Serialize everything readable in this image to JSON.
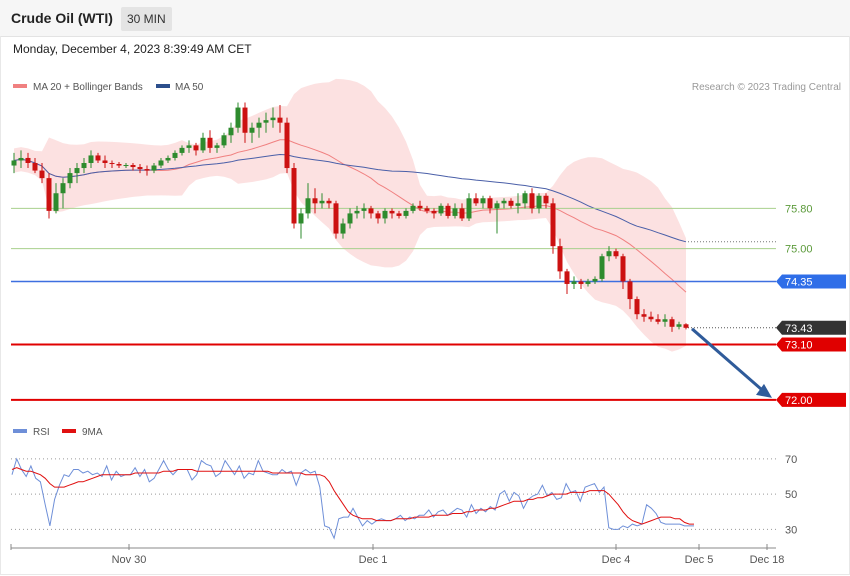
{
  "header": {
    "instrument": "Crude Oil (WTI)",
    "timeframe": "30 MIN"
  },
  "timestamp": "Monday, December 4, 2023 8:39:49 AM CET",
  "legend": {
    "ma20_bb": "MA 20 + Bollinger Bands",
    "ma50": "MA 50",
    "rsi": "RSI",
    "rsi_ma": "9MA"
  },
  "credit": "Research © 2023 Trading Central",
  "colors": {
    "up": "#2e8b2e",
    "down": "#cc1111",
    "bands": "#fcdcdc",
    "ma20": "#f08080",
    "ma50": "#4a5fa8",
    "rsi": "#6e8fd8",
    "rsi_ma": "#e01010",
    "resistance": "#a8d08d",
    "pivot": "#3d6fe0",
    "support": "#e00000",
    "current": "#333333",
    "arrow": "#2f5b9a"
  },
  "chart_data": {
    "type": "candlestick",
    "x_tick_labels": [
      "Nov 30",
      "Dec 1",
      "Dec 4",
      "Dec 5",
      "Dec 18"
    ],
    "y_range": [
      71.7,
      77.95
    ],
    "levels": [
      {
        "label": "75.80",
        "value": 75.8,
        "kind": "resistance"
      },
      {
        "label": "75.00",
        "value": 75.0,
        "kind": "resistance"
      },
      {
        "label": "74.35",
        "value": 74.35,
        "kind": "pivot"
      },
      {
        "label": "73.43",
        "value": 73.43,
        "kind": "current"
      },
      {
        "label": "73.10",
        "value": 73.1,
        "kind": "support"
      },
      {
        "label": "72.00",
        "value": 72.0,
        "kind": "support"
      }
    ],
    "forecast_arrow": {
      "from": 73.43,
      "to": 72.0,
      "direction": "down"
    },
    "candles": [
      [
        76.65,
        76.9,
        76.5,
        76.75
      ],
      [
        76.75,
        76.95,
        76.6,
        76.8
      ],
      [
        76.8,
        76.9,
        76.6,
        76.7
      ],
      [
        76.7,
        76.8,
        76.5,
        76.55
      ],
      [
        76.55,
        76.7,
        76.3,
        76.4
      ],
      [
        76.4,
        76.5,
        75.6,
        75.75
      ],
      [
        75.75,
        76.3,
        75.7,
        76.1
      ],
      [
        76.1,
        76.4,
        75.8,
        76.3
      ],
      [
        76.3,
        76.6,
        76.2,
        76.5
      ],
      [
        76.5,
        76.7,
        76.3,
        76.6
      ],
      [
        76.6,
        76.8,
        76.5,
        76.7
      ],
      [
        76.7,
        76.95,
        76.6,
        76.85
      ],
      [
        76.85,
        76.9,
        76.7,
        76.75
      ],
      [
        76.75,
        76.85,
        76.6,
        76.7
      ],
      [
        76.7,
        76.75,
        76.6,
        76.68
      ],
      [
        76.68,
        76.72,
        76.6,
        76.65
      ],
      [
        76.65,
        76.7,
        76.6,
        76.66
      ],
      [
        76.66,
        76.7,
        76.55,
        76.62
      ],
      [
        76.62,
        76.68,
        76.5,
        76.58
      ],
      [
        76.58,
        76.65,
        76.45,
        76.55
      ],
      [
        76.55,
        76.7,
        76.5,
        76.65
      ],
      [
        76.65,
        76.8,
        76.6,
        76.75
      ],
      [
        76.75,
        76.85,
        76.7,
        76.8
      ],
      [
        76.8,
        76.95,
        76.75,
        76.9
      ],
      [
        76.9,
        77.05,
        76.85,
        77.0
      ],
      [
        77.0,
        77.15,
        76.9,
        77.05
      ],
      [
        77.05,
        77.1,
        76.85,
        76.95
      ],
      [
        76.95,
        77.3,
        76.9,
        77.2
      ],
      [
        77.2,
        77.35,
        76.9,
        77.0
      ],
      [
        77.0,
        77.1,
        76.9,
        77.05
      ],
      [
        77.05,
        77.3,
        77.0,
        77.25
      ],
      [
        77.25,
        77.5,
        77.1,
        77.4
      ],
      [
        77.4,
        77.9,
        77.3,
        77.8
      ],
      [
        77.8,
        77.9,
        77.1,
        77.3
      ],
      [
        77.3,
        77.5,
        77.1,
        77.4
      ],
      [
        77.4,
        77.6,
        77.2,
        77.5
      ],
      [
        77.5,
        77.7,
        77.3,
        77.55
      ],
      [
        77.55,
        77.8,
        77.4,
        77.6
      ],
      [
        77.6,
        77.85,
        77.3,
        77.5
      ],
      [
        77.5,
        77.6,
        76.5,
        76.6
      ],
      [
        76.6,
        76.7,
        75.4,
        75.5
      ],
      [
        75.5,
        75.8,
        75.2,
        75.7
      ],
      [
        75.7,
        76.3,
        75.6,
        76.0
      ],
      [
        76.0,
        76.2,
        75.7,
        75.9
      ],
      [
        75.9,
        76.1,
        75.8,
        75.95
      ],
      [
        75.95,
        76.0,
        75.8,
        75.9
      ],
      [
        75.9,
        75.95,
        75.2,
        75.3
      ],
      [
        75.3,
        75.6,
        75.2,
        75.5
      ],
      [
        75.5,
        75.8,
        75.4,
        75.7
      ],
      [
        75.7,
        75.85,
        75.6,
        75.75
      ],
      [
        75.75,
        75.9,
        75.6,
        75.8
      ],
      [
        75.8,
        75.85,
        75.6,
        75.7
      ],
      [
        75.7,
        75.75,
        75.5,
        75.6
      ],
      [
        75.6,
        75.8,
        75.5,
        75.75
      ],
      [
        75.75,
        75.8,
        75.6,
        75.7
      ],
      [
        75.7,
        75.75,
        75.6,
        75.65
      ],
      [
        75.65,
        75.8,
        75.6,
        75.75
      ],
      [
        75.75,
        75.9,
        75.7,
        75.85
      ],
      [
        75.85,
        75.95,
        75.75,
        75.8
      ],
      [
        75.8,
        75.85,
        75.7,
        75.75
      ],
      [
        75.75,
        75.8,
        75.6,
        75.7
      ],
      [
        75.7,
        75.9,
        75.65,
        75.85
      ],
      [
        75.85,
        75.9,
        75.6,
        75.65
      ],
      [
        75.65,
        75.9,
        75.6,
        75.8
      ],
      [
        75.8,
        75.9,
        75.55,
        75.6
      ],
      [
        75.6,
        76.1,
        75.55,
        76.0
      ],
      [
        76.0,
        76.1,
        75.85,
        75.9
      ],
      [
        75.9,
        76.05,
        75.8,
        76.0
      ],
      [
        76.0,
        76.05,
        75.7,
        75.8
      ],
      [
        75.8,
        75.95,
        75.3,
        75.9
      ],
      [
        75.9,
        76.0,
        75.8,
        75.95
      ],
      [
        75.95,
        76.0,
        75.8,
        75.85
      ],
      [
        75.85,
        76.1,
        75.7,
        75.9
      ],
      [
        75.9,
        76.15,
        75.8,
        76.1
      ],
      [
        76.1,
        76.2,
        75.7,
        75.8
      ],
      [
        75.8,
        76.1,
        75.7,
        76.05
      ],
      [
        76.05,
        76.1,
        75.8,
        75.9
      ],
      [
        75.9,
        76.0,
        74.9,
        75.05
      ],
      [
        75.05,
        75.2,
        74.4,
        74.55
      ],
      [
        74.55,
        74.6,
        74.1,
        74.3
      ],
      [
        74.3,
        74.45,
        74.2,
        74.35
      ],
      [
        74.35,
        74.4,
        74.2,
        74.3
      ],
      [
        74.3,
        74.4,
        74.25,
        74.35
      ],
      [
        74.35,
        74.45,
        74.3,
        74.4
      ],
      [
        74.4,
        74.9,
        74.35,
        74.85
      ],
      [
        74.85,
        75.05,
        74.75,
        74.95
      ],
      [
        74.95,
        75.0,
        74.8,
        74.85
      ],
      [
        74.85,
        74.9,
        74.2,
        74.35
      ],
      [
        74.35,
        74.4,
        73.8,
        74.0
      ],
      [
        74.0,
        74.05,
        73.6,
        73.7
      ],
      [
        73.7,
        73.8,
        73.55,
        73.65
      ],
      [
        73.65,
        73.75,
        73.55,
        73.6
      ],
      [
        73.6,
        73.7,
        73.5,
        73.55
      ],
      [
        73.55,
        73.7,
        73.45,
        73.6
      ],
      [
        73.6,
        73.65,
        73.35,
        73.45
      ],
      [
        73.45,
        73.55,
        73.4,
        73.5
      ],
      [
        73.5,
        73.52,
        73.4,
        73.43
      ]
    ],
    "rsi": {
      "label": "RSI",
      "ma_label": "9MA",
      "ticks": [
        70,
        50,
        30
      ],
      "ylim": [
        24,
        79
      ],
      "rsi_values": [
        61,
        70,
        64,
        60,
        66,
        59,
        57,
        44,
        32,
        47,
        55,
        61,
        60,
        64,
        64,
        62,
        63,
        61,
        62,
        60,
        66,
        58,
        63,
        60,
        61,
        61,
        65,
        60,
        64,
        57,
        59,
        64,
        69,
        64,
        61,
        64,
        64,
        64,
        58,
        61,
        69,
        67,
        66,
        60,
        62,
        69,
        65,
        61,
        66,
        59,
        62,
        61,
        69,
        63,
        62,
        61,
        61,
        64,
        62,
        63,
        55,
        62,
        64,
        62,
        63,
        54,
        32,
        31,
        25,
        36,
        37,
        37,
        42,
        37,
        32,
        35,
        33,
        35,
        36,
        35,
        35,
        36,
        38,
        35,
        37,
        36,
        38,
        38,
        41,
        37,
        40,
        41,
        38,
        40,
        42,
        41,
        37,
        44,
        39,
        42,
        40,
        43,
        41,
        50,
        52,
        46,
        51,
        49,
        42,
        47,
        49,
        50,
        55,
        49,
        51,
        47,
        48,
        56,
        51,
        52,
        46,
        54,
        55,
        56,
        51,
        54,
        31,
        30,
        30,
        32,
        31,
        33,
        32,
        33,
        44,
        42,
        39,
        34,
        33,
        33,
        33,
        33,
        32,
        32,
        32
      ],
      "ma_values": [
        64,
        65,
        64,
        63,
        63,
        62,
        61,
        59,
        56,
        54,
        54,
        54,
        55,
        56,
        57,
        57,
        58,
        59,
        60,
        61,
        61,
        61,
        61,
        61,
        61,
        61,
        62,
        62,
        62,
        62,
        62,
        62,
        63,
        63,
        63,
        64,
        64,
        64,
        64,
        63,
        63,
        63,
        63,
        63,
        63,
        63,
        63,
        63,
        63,
        63,
        63,
        63,
        63,
        63,
        63,
        62,
        62,
        62,
        62,
        62,
        62,
        62,
        61,
        61,
        61,
        61,
        60,
        57,
        52,
        48,
        44,
        40,
        38,
        37,
        36,
        36,
        36,
        35,
        35,
        35,
        35,
        36,
        36,
        36,
        36,
        37,
        37,
        37,
        37,
        38,
        38,
        38,
        38,
        39,
        39,
        39,
        40,
        40,
        41,
        41,
        41,
        42,
        42,
        43,
        44,
        45,
        46,
        46,
        46,
        47,
        47,
        48,
        48,
        49,
        50,
        50,
        50,
        50,
        51,
        51,
        51,
        51,
        52,
        52,
        52,
        52,
        50,
        47,
        44,
        40,
        37,
        35,
        34,
        33,
        34,
        35,
        36,
        37,
        37,
        37,
        36,
        36,
        34,
        33,
        33
      ]
    }
  }
}
